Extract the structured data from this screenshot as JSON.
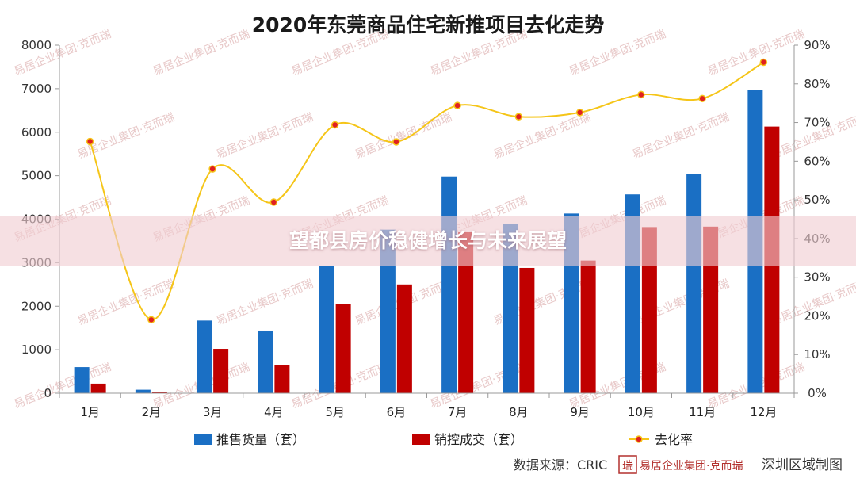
{
  "chart_data": {
    "type": "bar",
    "title": "2020年东莞商品住宅新推项目去化走势",
    "categories": [
      "1月",
      "2月",
      "3月",
      "4月",
      "5月",
      "6月",
      "7月",
      "8月",
      "9月",
      "10月",
      "11月",
      "12月"
    ],
    "series": [
      {
        "name": "推售货量（套）",
        "type": "bar",
        "axis": "left",
        "color": "#1a6fc4",
        "values": [
          600,
          80,
          1670,
          1440,
          2930,
          3760,
          4980,
          3900,
          4130,
          4570,
          5030,
          6970
        ]
      },
      {
        "name": "销控成交（套）",
        "type": "bar",
        "axis": "left",
        "color": "#c00000",
        "values": [
          220,
          20,
          1020,
          640,
          2050,
          2500,
          3700,
          2880,
          3050,
          3820,
          3830,
          6130
        ]
      },
      {
        "name": "去化率",
        "type": "line",
        "axis": "right",
        "color": "#f5c518",
        "marker_color": "#e02020",
        "values": [
          65.1,
          19.0,
          58.0,
          49.4,
          69.4,
          65.0,
          74.4,
          71.5,
          72.6,
          77.2,
          76.2,
          85.6
        ]
      }
    ],
    "ylim_left": [
      0,
      8000
    ],
    "yticks_left": [
      "0",
      "1000",
      "2000",
      "3000",
      "4000",
      "5000",
      "6000",
      "7000",
      "8000"
    ],
    "ylim_right": [
      0,
      90
    ],
    "yticks_right": [
      "0%",
      "10%",
      "20%",
      "30%",
      "40%",
      "50%",
      "60%",
      "70%",
      "80%",
      "90%"
    ],
    "legend_position": "bottom",
    "grid": false
  },
  "overlay_title": "望都县房价稳健增长与未来展望",
  "source_label": "数据来源：CRIC",
  "source_logo_text": "易居企业集团·克而瑞",
  "region_label": "深圳区域制图",
  "watermark_text": "易居企业集团·克而瑞",
  "logo_glyph": "瑞",
  "colors": {
    "accent": "#c00000",
    "bar_blue": "#1a6fc4",
    "line_yellow": "#f5c518"
  }
}
